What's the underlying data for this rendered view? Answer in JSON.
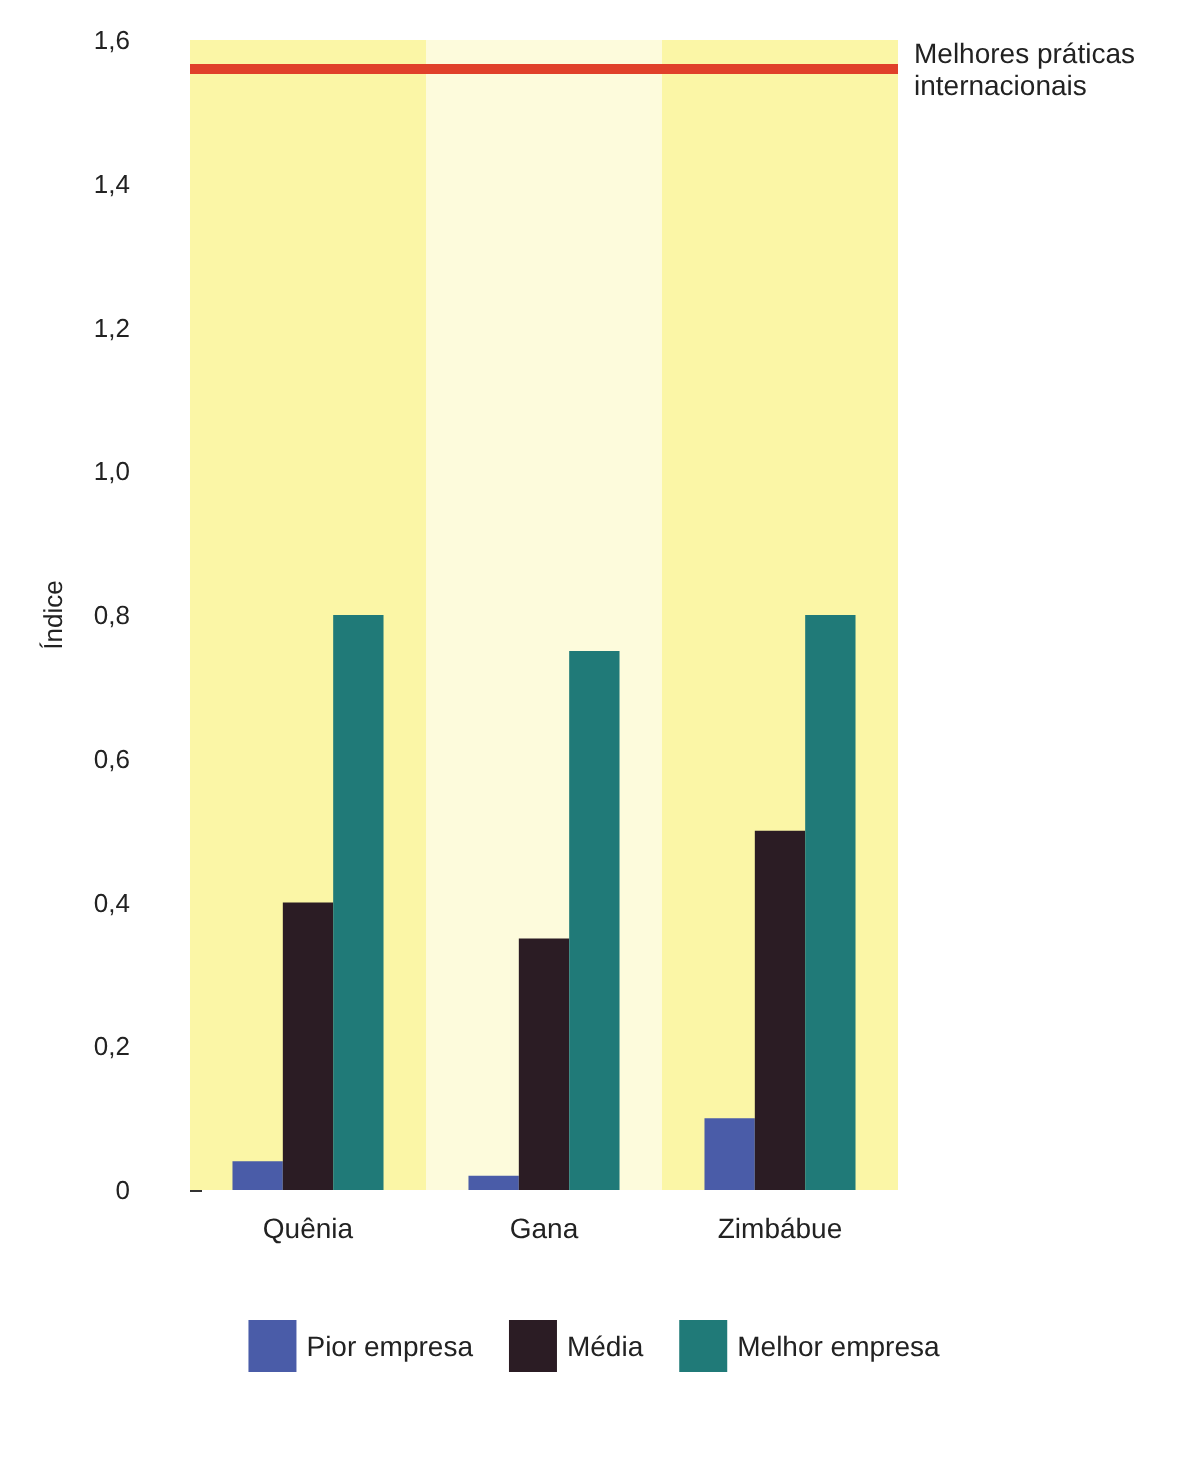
{
  "chart_data": {
    "type": "bar",
    "ylabel": "Índice",
    "categories": [
      "Quênia",
      "Gana",
      "Zimbábue"
    ],
    "series": [
      {
        "name": "Pior empresa",
        "color": "#4a5ca8",
        "values": [
          0.04,
          0.02,
          0.1
        ]
      },
      {
        "name": "Média",
        "color": "#2b1c24",
        "values": [
          0.4,
          0.35,
          0.5
        ]
      },
      {
        "name": "Melhor empresa",
        "color": "#207a78",
        "values": [
          0.8,
          0.75,
          0.8
        ]
      }
    ],
    "ylim": [
      0,
      1.6
    ],
    "yticks": [
      0,
      {
        "value": 0.2,
        "label": "0,2"
      },
      {
        "value": 0.4,
        "label": "0,4"
      },
      {
        "value": 0.6,
        "label": "0,6"
      },
      {
        "value": 0.8,
        "label": "0,8"
      },
      {
        "value": 1.0,
        "label": "1,0"
      },
      {
        "value": 1.2,
        "label": "1,2"
      },
      {
        "value": 1.4,
        "label": "1,4"
      },
      {
        "value": 1.6,
        "label": "1,6"
      }
    ],
    "ref_lines": [
      {
        "axis": "y",
        "value": 1.56,
        "label": "Melhores práticas internacionais",
        "color": "#e0402a"
      }
    ],
    "bands": [
      {
        "axis": "x",
        "from": "Quênia",
        "to": "Quênia",
        "color": "#fbf6a6"
      },
      {
        "axis": "x",
        "from": "Gana",
        "to": "Gana",
        "color": "#fdfbdc"
      },
      {
        "axis": "x",
        "from": "Zimbábue",
        "to": "Zimbábue",
        "color": "#fbf6a6"
      }
    ],
    "legend": "bottom"
  }
}
